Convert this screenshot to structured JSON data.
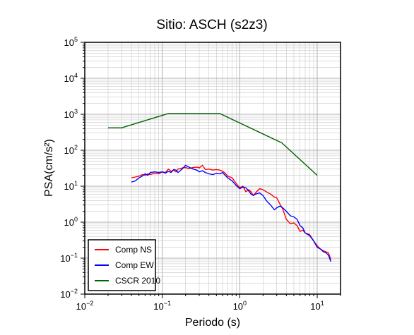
{
  "chart_data": {
    "type": "line",
    "title": "Sitio: ASCH (s2z3)",
    "xlabel": "Periodo (s)",
    "ylabel": "PSA(cm/s²)",
    "xscale": "log",
    "yscale": "log",
    "xlim": [
      0.01,
      20
    ],
    "ylim": [
      0.01,
      100000
    ],
    "grid": true,
    "legend_position": "bottom-left",
    "x_tick_labels": [
      {
        "base": "10",
        "exp": "−2"
      },
      {
        "base": "10",
        "exp": "−1"
      },
      {
        "base": "10",
        "exp": "0"
      },
      {
        "base": "10",
        "exp": "1"
      }
    ],
    "y_tick_labels": [
      {
        "base": "10",
        "exp": "−2"
      },
      {
        "base": "10",
        "exp": "−1"
      },
      {
        "base": "10",
        "exp": "0"
      },
      {
        "base": "10",
        "exp": "1"
      },
      {
        "base": "10",
        "exp": "2"
      },
      {
        "base": "10",
        "exp": "3"
      },
      {
        "base": "10",
        "exp": "4"
      },
      {
        "base": "10",
        "exp": "5"
      }
    ],
    "series": [
      {
        "name": "Comp NS",
        "color": "#ff0000",
        "x": [
          0.04,
          0.045,
          0.05,
          0.055,
          0.06,
          0.065,
          0.07,
          0.08,
          0.09,
          0.1,
          0.11,
          0.12,
          0.13,
          0.14,
          0.15,
          0.16,
          0.18,
          0.2,
          0.22,
          0.25,
          0.28,
          0.3,
          0.33,
          0.36,
          0.4,
          0.45,
          0.5,
          0.55,
          0.6,
          0.65,
          0.7,
          0.8,
          0.9,
          1.0,
          1.1,
          1.2,
          1.3,
          1.4,
          1.5,
          1.6,
          1.8,
          2.0,
          2.2,
          2.5,
          2.8,
          3.0,
          3.3,
          3.6,
          4.0,
          4.5,
          5.0,
          5.5,
          6.0,
          6.5,
          7.0,
          8.0,
          9.0,
          10.0,
          11.0,
          12.0,
          13.0,
          14.0,
          15.0
        ],
        "y": [
          17,
          18,
          19,
          21,
          20,
          22,
          21,
          23,
          22,
          25,
          24,
          30,
          26,
          28,
          25,
          30,
          32,
          33,
          31,
          33,
          34,
          32,
          38,
          29,
          30,
          28,
          29,
          28,
          26,
          23,
          19,
          17,
          12,
          9,
          10,
          7,
          8,
          7,
          5.5,
          6.5,
          8.5,
          8,
          7,
          6,
          5,
          4.8,
          3.2,
          2.3,
          1.2,
          0.9,
          0.95,
          0.8,
          0.55,
          0.6,
          0.5,
          0.45,
          0.3,
          0.22,
          0.18,
          0.16,
          0.15,
          0.14,
          0.09
        ]
      },
      {
        "name": "Comp EW",
        "color": "#0000ff",
        "x": [
          0.04,
          0.045,
          0.05,
          0.055,
          0.06,
          0.065,
          0.07,
          0.08,
          0.09,
          0.1,
          0.11,
          0.12,
          0.13,
          0.14,
          0.15,
          0.16,
          0.18,
          0.2,
          0.22,
          0.25,
          0.28,
          0.3,
          0.33,
          0.36,
          0.4,
          0.45,
          0.5,
          0.55,
          0.6,
          0.65,
          0.7,
          0.8,
          0.9,
          1.0,
          1.1,
          1.2,
          1.3,
          1.4,
          1.5,
          1.6,
          1.8,
          2.0,
          2.2,
          2.5,
          2.8,
          3.0,
          3.3,
          3.6,
          4.0,
          4.5,
          5.0,
          5.5,
          6.0,
          6.5,
          7.0,
          8.0,
          9.0,
          10.0,
          11.0,
          12.0,
          13.0,
          14.0,
          15.0
        ],
        "y": [
          13,
          14,
          17,
          19,
          22,
          20,
          24,
          25,
          24,
          25,
          23,
          26,
          24,
          29,
          28,
          24,
          30,
          38,
          34,
          30,
          28,
          25,
          27,
          24,
          22,
          21,
          23,
          22,
          24,
          20,
          17,
          14,
          10.5,
          8.5,
          9.5,
          9,
          7.5,
          6,
          5.5,
          6,
          6.5,
          5.5,
          4,
          3,
          2.2,
          2.5,
          2.8,
          2.5,
          2,
          1.5,
          1.4,
          1.2,
          0.8,
          0.7,
          0.5,
          0.42,
          0.3,
          0.2,
          0.18,
          0.15,
          0.14,
          0.12,
          0.08
        ]
      },
      {
        "name": "CSCR 2010",
        "color": "#006400",
        "x": [
          0.02,
          0.03,
          0.12,
          0.55,
          3.5,
          10.0
        ],
        "y": [
          420,
          420,
          1050,
          1050,
          160,
          20
        ]
      }
    ]
  }
}
